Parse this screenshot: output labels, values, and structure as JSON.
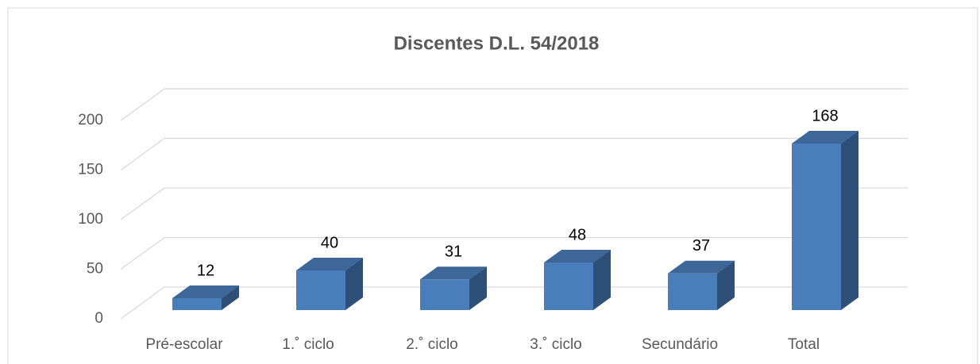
{
  "chart_data": {
    "type": "bar3d",
    "title": "Discentes D.L. 54/2018",
    "categories": [
      "Pré-escolar",
      "1.˚ ciclo",
      "2.˚ ciclo",
      "3.˚ ciclo",
      "Secundário",
      "Total"
    ],
    "values": [
      12,
      40,
      31,
      48,
      37,
      168
    ],
    "color": "#4a7ebb",
    "ylim": [
      0,
      200
    ],
    "yticks": [
      0,
      50,
      100,
      150,
      200
    ],
    "grid": true
  }
}
